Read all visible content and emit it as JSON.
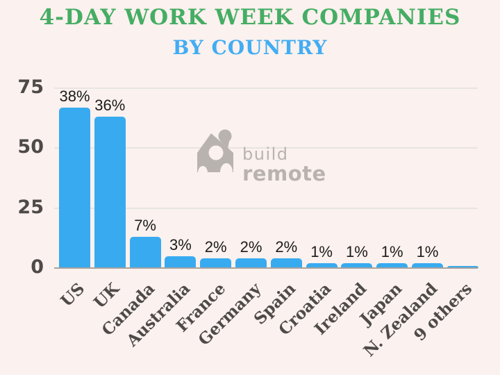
{
  "title": {
    "line1": "4-DAY WORK WEEK COMPANIES",
    "line2": "BY COUNTRY"
  },
  "watermark": {
    "line1": "build",
    "line2": "remote",
    "icon": "buildremote-house-person-icon"
  },
  "colors": {
    "background": "#fbf1ee",
    "title_green": "#45ad64",
    "title_blue": "#42adf3",
    "bar_blue": "#38abf0",
    "axis_text": "#4d4a48",
    "value_text": "#1b1b1b",
    "gridline": "#e8e4e1",
    "baseline": "#a8a29d",
    "watermark": "#b9b3b0"
  },
  "chart_data": {
    "type": "bar",
    "title": "4-DAY WORK WEEK COMPANIES BY COUNTRY",
    "categories": [
      "US",
      "UK",
      "Canada",
      "Australia",
      "France",
      "Germany",
      "Spain",
      "Croatia",
      "Ireland",
      "Japan",
      "N. Zealand",
      "9 others"
    ],
    "values": [
      67,
      63,
      13,
      5,
      4,
      4,
      4,
      2,
      2,
      2,
      2,
      1
    ],
    "value_labels": [
      "38%",
      "36%",
      "7%",
      "3%",
      "2%",
      "2%",
      "2%",
      "1%",
      "1%",
      "1%",
      "1%",
      ""
    ],
    "xlabel": "",
    "ylabel": "",
    "ylim": [
      0,
      75
    ],
    "yticks": [
      0,
      25,
      50,
      75
    ],
    "grid": true,
    "legend": false,
    "bar_color": "#38abf0",
    "x_tick_rotation": -45
  }
}
